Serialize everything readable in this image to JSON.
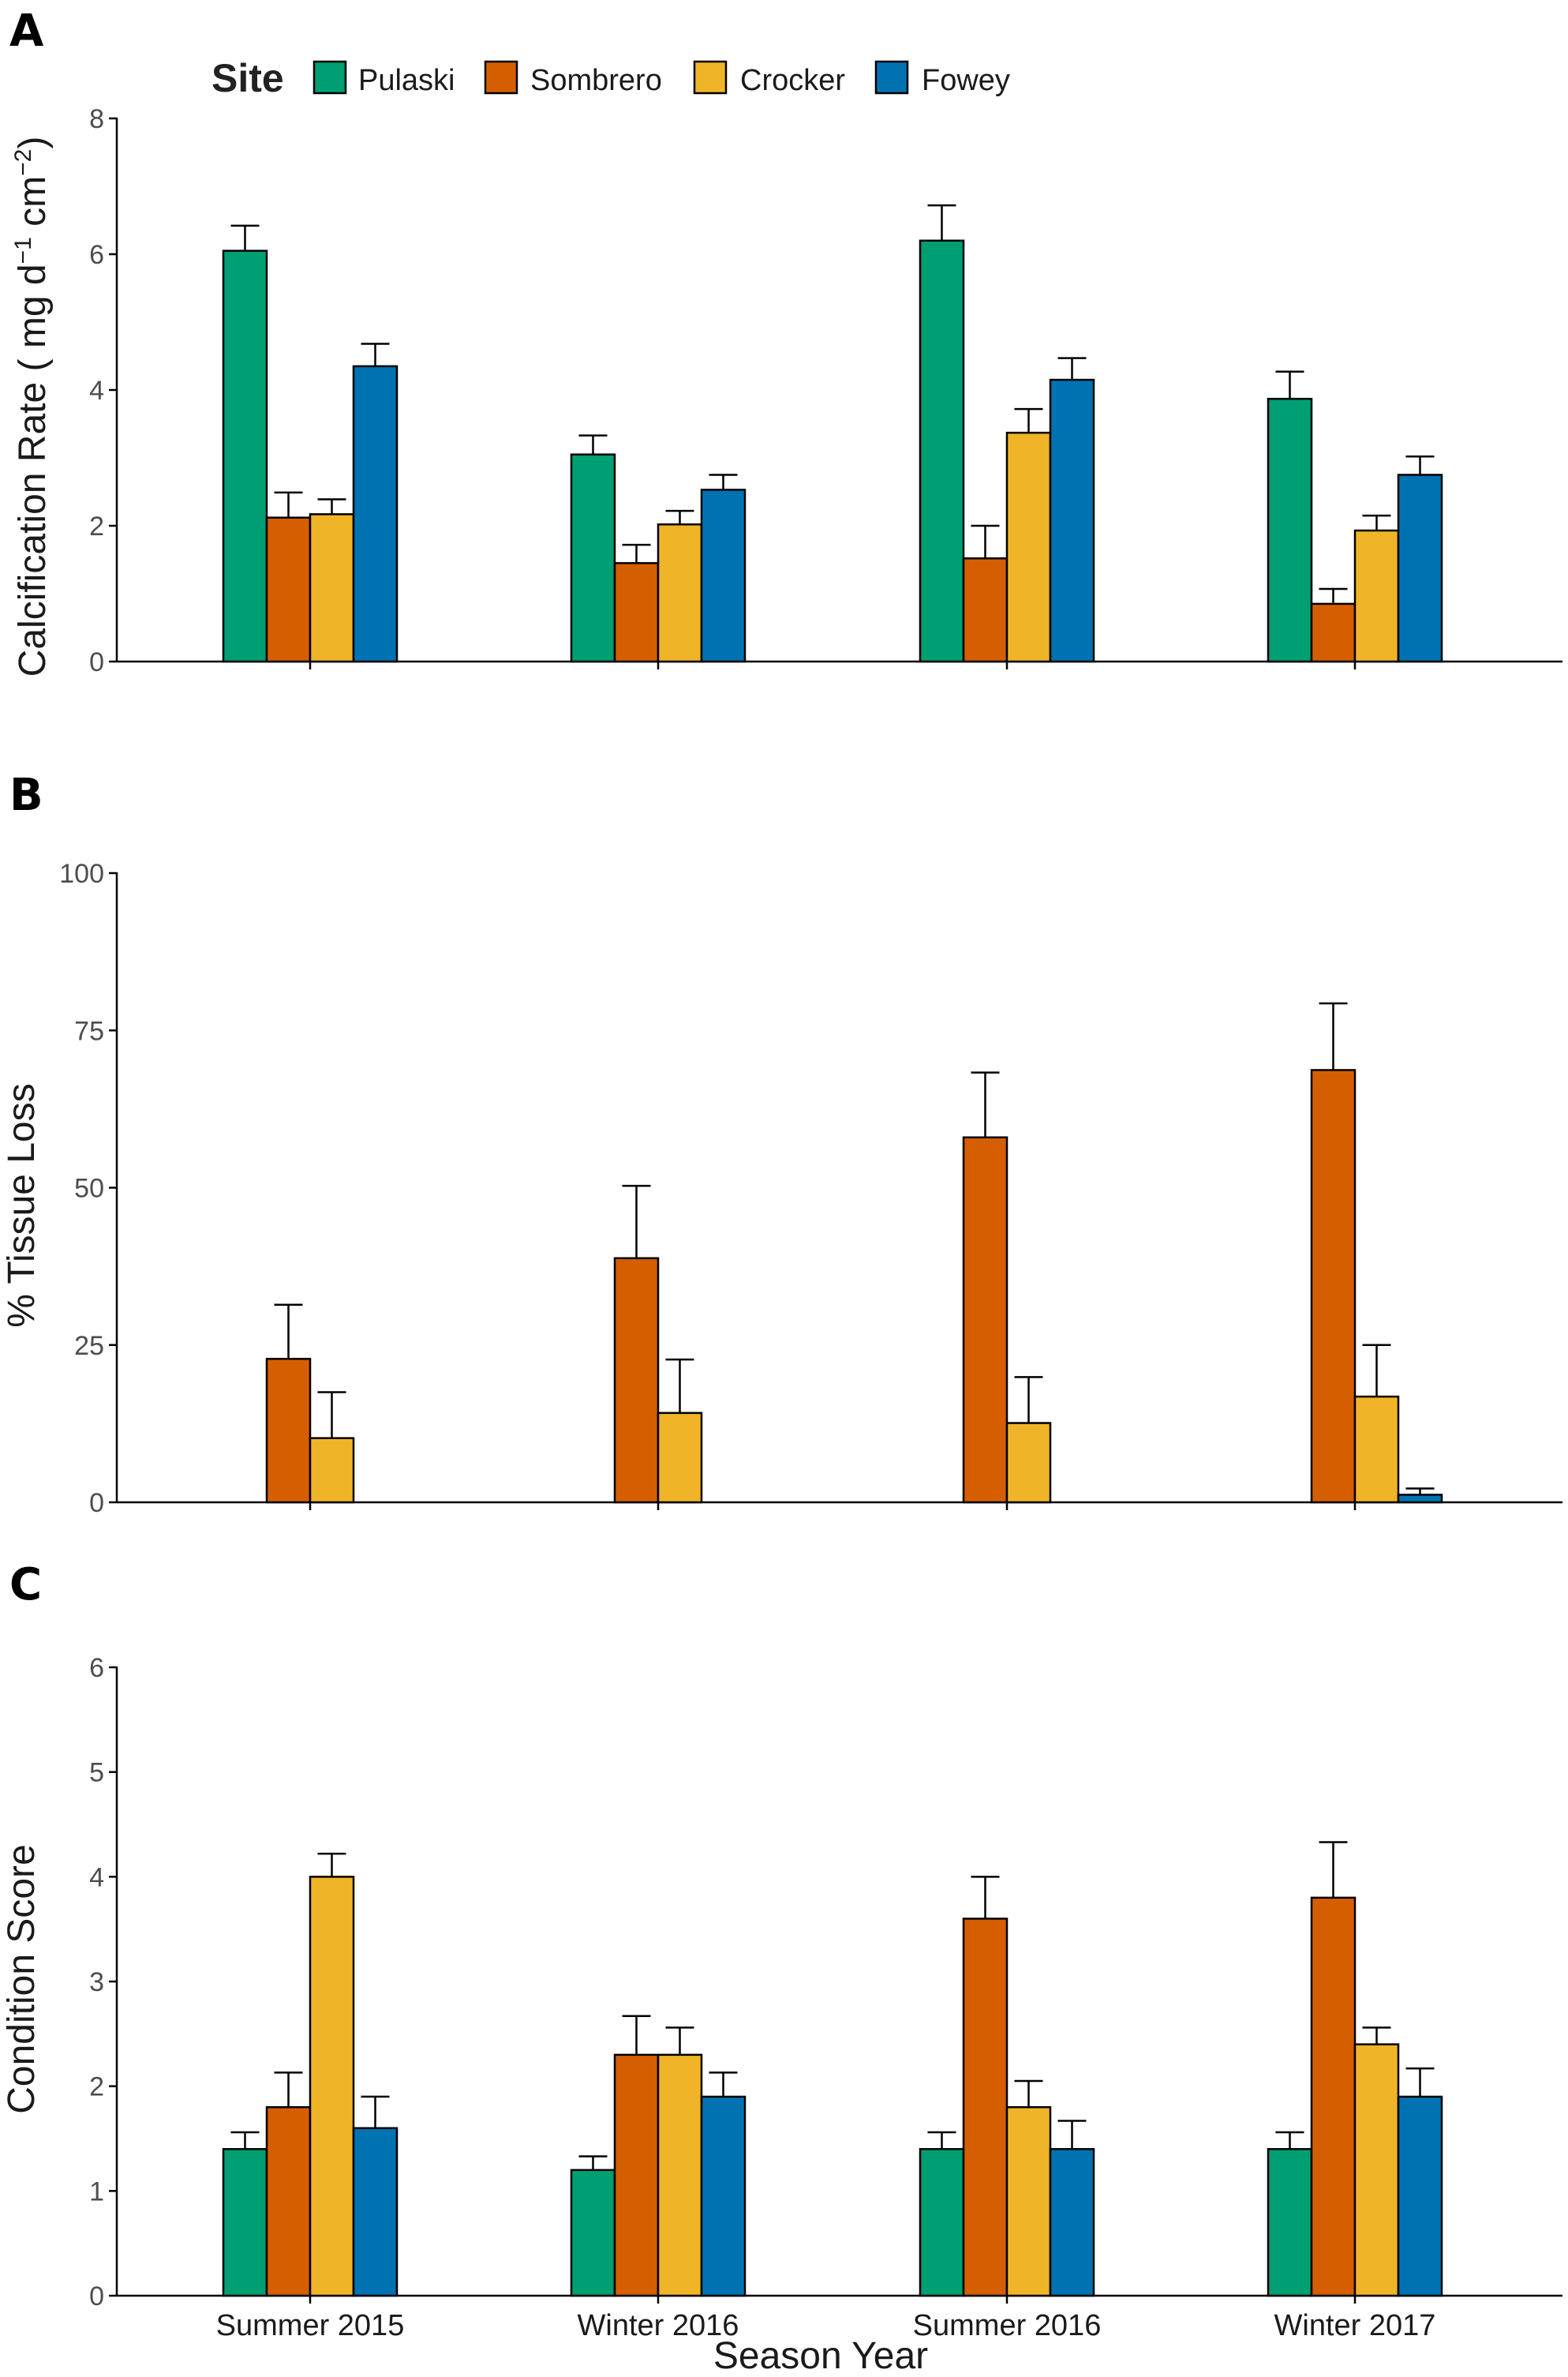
{
  "colors": {
    "Pulaski": "#009E73",
    "Sombrero": "#D55E00",
    "Crocker": "#F0B428",
    "Fowey": "#0072B2"
  },
  "legend": {
    "title": "Site",
    "entries": [
      "Pulaski",
      "Sombrero",
      "Crocker",
      "Fowey"
    ]
  },
  "xlabel": "Season Year",
  "chart_data": [
    {
      "panel": "A",
      "type": "bar",
      "ylabel_main": "Calcification Rate ( mg d",
      "ylabel_unit_mid": " cm",
      "ylabel_sup1": "−1",
      "ylabel_sup2": "−2",
      "ylabel_end": ")",
      "ylim": [
        0,
        8
      ],
      "yticks": [
        "0",
        "2",
        "4",
        "6",
        "8"
      ],
      "ytick_values": [
        0,
        2,
        4,
        6,
        8
      ],
      "categories": [
        "Summer 2015",
        "Winter 2016",
        "Summer 2016",
        "Winter 2017"
      ],
      "show_category_labels": false,
      "series": [
        {
          "name": "Pulaski",
          "values": [
            6.05,
            3.05,
            6.2,
            3.87
          ],
          "errors": [
            0.37,
            0.28,
            0.52,
            0.4
          ]
        },
        {
          "name": "Sombrero",
          "values": [
            2.12,
            1.45,
            1.52,
            0.85
          ],
          "errors": [
            0.37,
            0.27,
            0.48,
            0.22
          ]
        },
        {
          "name": "Crocker",
          "values": [
            2.17,
            2.02,
            3.37,
            1.93
          ],
          "errors": [
            0.22,
            0.2,
            0.35,
            0.22
          ]
        },
        {
          "name": "Fowey",
          "values": [
            4.35,
            2.53,
            4.15,
            2.75
          ],
          "errors": [
            0.33,
            0.22,
            0.32,
            0.27
          ]
        }
      ]
    },
    {
      "panel": "B",
      "type": "bar",
      "ylabel": "% Tissue Loss",
      "ylim": [
        0,
        100
      ],
      "yticks": [
        "0",
        "25",
        "50",
        "75",
        "100"
      ],
      "ytick_values": [
        0,
        25,
        50,
        75,
        100
      ],
      "categories": [
        "Summer 2015",
        "Winter 2016",
        "Summer 2016",
        "Winter 2017"
      ],
      "show_category_labels": false,
      "series": [
        {
          "name": "Pulaski",
          "values": [
            0,
            0,
            0,
            0
          ],
          "errors": [
            0,
            0,
            0,
            0
          ]
        },
        {
          "name": "Sombrero",
          "values": [
            22.8,
            38.8,
            58,
            68.7
          ],
          "errors": [
            8.6,
            11.5,
            10.3,
            10.6
          ]
        },
        {
          "name": "Crocker",
          "values": [
            10.2,
            14.2,
            12.6,
            16.8
          ],
          "errors": [
            7.3,
            8.5,
            7.3,
            8.2
          ]
        },
        {
          "name": "Fowey",
          "values": [
            0,
            0,
            0,
            1.2
          ],
          "errors": [
            0,
            0,
            0,
            1.0
          ]
        }
      ]
    },
    {
      "panel": "C",
      "type": "bar",
      "ylabel": "Condition Score",
      "ylim": [
        0,
        6
      ],
      "yticks": [
        "0",
        "1",
        "2",
        "3",
        "4",
        "5",
        "6"
      ],
      "ytick_values": [
        0,
        1,
        2,
        3,
        4,
        5,
        6
      ],
      "categories": [
        "Summer 2015",
        "Winter 2016",
        "Summer 2016",
        "Winter 2017"
      ],
      "show_category_labels": true,
      "series": [
        {
          "name": "Pulaski",
          "values": [
            1.4,
            1.2,
            1.4,
            1.4
          ],
          "errors": [
            0.16,
            0.13,
            0.16,
            0.16
          ]
        },
        {
          "name": "Sombrero",
          "values": [
            1.8,
            2.3,
            3.6,
            3.8
          ],
          "errors": [
            0.33,
            0.37,
            0.4,
            0.53
          ]
        },
        {
          "name": "Crocker",
          "values": [
            4.0,
            2.3,
            1.8,
            2.4
          ],
          "errors": [
            0.22,
            0.26,
            0.25,
            0.16
          ]
        },
        {
          "name": "Fowey",
          "values": [
            1.6,
            1.9,
            1.4,
            1.9
          ],
          "errors": [
            0.3,
            0.23,
            0.27,
            0.27
          ]
        }
      ]
    }
  ]
}
